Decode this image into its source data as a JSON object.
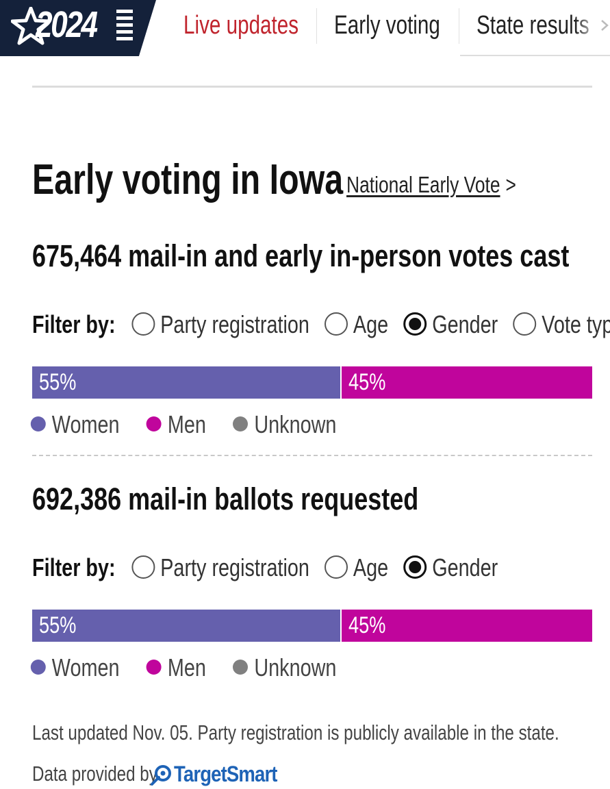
{
  "nav": {
    "logo_text": "2024",
    "tabs": [
      {
        "label": "Live updates",
        "state": "highlighted"
      },
      {
        "label": "Early voting",
        "state": "active"
      },
      {
        "label": "State results",
        "state": "normal"
      }
    ]
  },
  "page": {
    "title": "Early voting in Iowa",
    "national_link": "National Early Vote"
  },
  "sections": [
    {
      "count": "675,464",
      "headline_suffix": "mail-in and early in-person votes cast",
      "filter_label": "Filter by:",
      "filters": [
        {
          "label": "Party registration",
          "selected": false
        },
        {
          "label": "Age",
          "selected": false
        },
        {
          "label": "Gender",
          "selected": true
        },
        {
          "label": "Vote type",
          "selected": false
        }
      ],
      "bar": [
        {
          "label": "55%",
          "value": 55,
          "color": "#6560ad"
        },
        {
          "label": "45%",
          "value": 45,
          "color": "#c0059c"
        }
      ],
      "legend": [
        {
          "label": "Women",
          "color": "#6560ad"
        },
        {
          "label": "Men",
          "color": "#c0059c"
        },
        {
          "label": "Unknown",
          "color": "#808080"
        }
      ]
    },
    {
      "count": "692,386",
      "headline_suffix": "mail-in ballots requested",
      "filter_label": "Filter by:",
      "filters": [
        {
          "label": "Party registration",
          "selected": false
        },
        {
          "label": "Age",
          "selected": false
        },
        {
          "label": "Gender",
          "selected": true
        }
      ],
      "bar": [
        {
          "label": "55%",
          "value": 55,
          "color": "#6560ad"
        },
        {
          "label": "45%",
          "value": 45,
          "color": "#c0059c"
        }
      ],
      "legend": [
        {
          "label": "Women",
          "color": "#6560ad"
        },
        {
          "label": "Men",
          "color": "#c0059c"
        },
        {
          "label": "Unknown",
          "color": "#808080"
        }
      ]
    }
  ],
  "footer": {
    "note": "Last updated Nov. 05. Party registration is publicly available in the state.",
    "provided_by": "Data provided by",
    "provider_name": "TargetSmart"
  },
  "colors": {
    "brand_navy": "#14213a",
    "live_red": "#c0242d",
    "provider_blue": "#1e63b6"
  }
}
